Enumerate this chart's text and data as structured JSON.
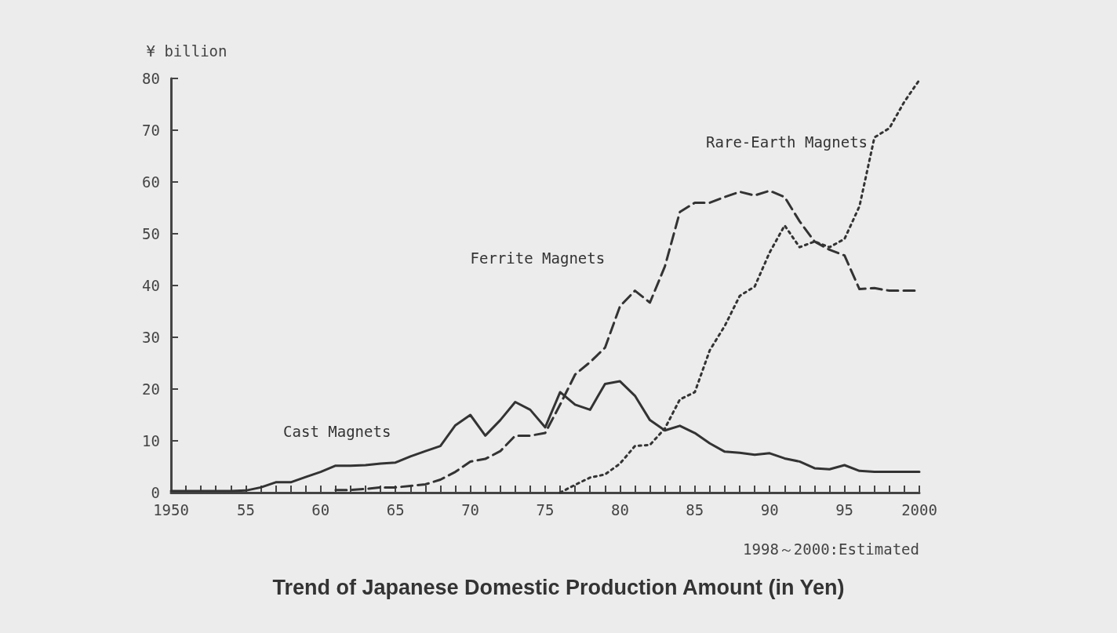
{
  "chart_data": {
    "type": "line",
    "title": "Trend of Japanese Domestic Production Amount (in Yen)",
    "ylabel": "¥ billion",
    "annotations": [
      "1998～2000:Estimated"
    ],
    "x": [
      1950,
      1951,
      1952,
      1953,
      1954,
      1955,
      1956,
      1957,
      1958,
      1959,
      1960,
      1961,
      1962,
      1963,
      1964,
      1965,
      1966,
      1967,
      1968,
      1969,
      1970,
      1971,
      1972,
      1973,
      1974,
      1975,
      1976,
      1977,
      1978,
      1979,
      1980,
      1981,
      1982,
      1983,
      1984,
      1985,
      1986,
      1987,
      1988,
      1989,
      1990,
      1991,
      1992,
      1993,
      1994,
      1995,
      1996,
      1997,
      1998,
      1999,
      2000
    ],
    "series": [
      {
        "name": "Cast Magnets",
        "color": "#333333",
        "line_style": "solid",
        "values": [
          0.3,
          0.3,
          0.3,
          0.3,
          0.3,
          0.4,
          1,
          2,
          2,
          3,
          4,
          5.2,
          5.2,
          5.3,
          5.6,
          5.8,
          7,
          8,
          9,
          13,
          15,
          11,
          14,
          17.5,
          16,
          12.6,
          19.4,
          17,
          16,
          21,
          21.5,
          18.7,
          14,
          12,
          12.9,
          11.5,
          9.5,
          7.9,
          7.7,
          7.3,
          7.6,
          6.6,
          6,
          4.7,
          4.5,
          5.3,
          4.2,
          4,
          4,
          4,
          4
        ]
      },
      {
        "name": "Ferrite Magnets",
        "color": "#333333",
        "line_style": "dashed",
        "values": [
          null,
          null,
          null,
          null,
          null,
          null,
          null,
          null,
          null,
          null,
          null,
          0.5,
          0.5,
          0.7,
          1,
          1,
          1.3,
          1.6,
          2.5,
          4,
          6,
          6.5,
          8,
          11,
          11,
          11.5,
          17,
          22.8,
          25.2,
          28,
          36,
          39,
          36.7,
          43.7,
          54.2,
          56,
          56,
          57.1,
          58.1,
          57.4,
          58.3,
          57.1,
          52.4,
          48.5,
          46.9,
          45.8,
          39.3,
          39.5,
          39,
          39,
          39
        ]
      },
      {
        "name": "Rare-Earth Magnets",
        "color": "#333333",
        "line_style": "dotted",
        "values": [
          null,
          null,
          null,
          null,
          null,
          null,
          null,
          null,
          null,
          null,
          null,
          null,
          null,
          null,
          null,
          null,
          null,
          null,
          null,
          null,
          null,
          null,
          null,
          null,
          null,
          null,
          0,
          1.5,
          2.9,
          3.5,
          5.6,
          9,
          9.2,
          12.4,
          18,
          19.4,
          27.5,
          32.2,
          38,
          39.8,
          46.4,
          51.6,
          47.4,
          48.5,
          47.4,
          49,
          55.3,
          68.6,
          70.4,
          75.5,
          79.7
        ]
      }
    ],
    "xlim": [
      1950,
      2000
    ],
    "xticks": [
      {
        "value": 1950,
        "label": "1950"
      },
      {
        "value": 1951,
        "label": null
      },
      {
        "value": 1952,
        "label": null
      },
      {
        "value": 1953,
        "label": null
      },
      {
        "value": 1954,
        "label": null
      },
      {
        "value": 1955,
        "label": "55"
      },
      {
        "value": 1956,
        "label": null
      },
      {
        "value": 1957,
        "label": null
      },
      {
        "value": 1958,
        "label": null
      },
      {
        "value": 1959,
        "label": null
      },
      {
        "value": 1960,
        "label": "60"
      },
      {
        "value": 1961,
        "label": null
      },
      {
        "value": 1962,
        "label": null
      },
      {
        "value": 1963,
        "label": null
      },
      {
        "value": 1964,
        "label": null
      },
      {
        "value": 1965,
        "label": "65"
      },
      {
        "value": 1966,
        "label": null
      },
      {
        "value": 1967,
        "label": null
      },
      {
        "value": 1968,
        "label": null
      },
      {
        "value": 1969,
        "label": null
      },
      {
        "value": 1970,
        "label": "70"
      },
      {
        "value": 1971,
        "label": null
      },
      {
        "value": 1972,
        "label": null
      },
      {
        "value": 1973,
        "label": null
      },
      {
        "value": 1974,
        "label": null
      },
      {
        "value": 1975,
        "label": "75"
      },
      {
        "value": 1976,
        "label": null
      },
      {
        "value": 1977,
        "label": null
      },
      {
        "value": 1978,
        "label": null
      },
      {
        "value": 1979,
        "label": null
      },
      {
        "value": 1980,
        "label": "80"
      },
      {
        "value": 1981,
        "label": null
      },
      {
        "value": 1982,
        "label": null
      },
      {
        "value": 1983,
        "label": null
      },
      {
        "value": 1984,
        "label": null
      },
      {
        "value": 1985,
        "label": "85"
      },
      {
        "value": 1986,
        "label": null
      },
      {
        "value": 1987,
        "label": null
      },
      {
        "value": 1988,
        "label": null
      },
      {
        "value": 1989,
        "label": null
      },
      {
        "value": 1990,
        "label": "90"
      },
      {
        "value": 1991,
        "label": null
      },
      {
        "value": 1992,
        "label": null
      },
      {
        "value": 1993,
        "label": null
      },
      {
        "value": 1994,
        "label": null
      },
      {
        "value": 1995,
        "label": "95"
      },
      {
        "value": 1996,
        "label": null
      },
      {
        "value": 1997,
        "label": null
      },
      {
        "value": 1998,
        "label": null
      },
      {
        "value": 1999,
        "label": null
      },
      {
        "value": 2000,
        "label": "2000"
      }
    ],
    "ylim": [
      0,
      80
    ],
    "yticks": [
      0,
      10,
      20,
      30,
      40,
      50,
      60,
      70,
      80
    ],
    "grid": false,
    "legend": false,
    "marker": "none"
  }
}
